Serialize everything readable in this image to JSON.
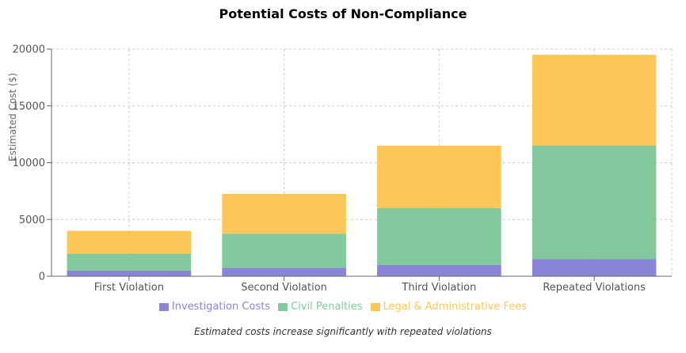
{
  "chart_data": {
    "type": "bar",
    "stacked": true,
    "title": "Potential Costs of Non-Compliance",
    "ylabel": "Estimated Cost ($)",
    "xlabel": "",
    "categories": [
      "First Violation",
      "Second Violation",
      "Third Violation",
      "Repeated Violations"
    ],
    "series": [
      {
        "name": "Investigation Costs",
        "color": "#8884d8",
        "values": [
          500,
          750,
          1000,
          1500
        ]
      },
      {
        "name": "Civil Penalties",
        "color": "#82ca9d",
        "values": [
          1500,
          3000,
          5000,
          10000
        ]
      },
      {
        "name": "Legal & Administrative Fees",
        "color": "#ffc658",
        "values": [
          2000,
          3500,
          5500,
          8000
        ]
      }
    ],
    "ylim": [
      0,
      20000
    ],
    "yticks": [
      "0",
      "5000",
      "10000",
      "15000",
      "20000"
    ],
    "grid": true,
    "legend_position": "bottom",
    "footnote": "Estimated costs increase significantly with repeated violations"
  }
}
